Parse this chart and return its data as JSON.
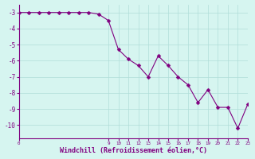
{
  "x": [
    0,
    1,
    2,
    3,
    4,
    5,
    6,
    7,
    8,
    9,
    10,
    11,
    12,
    13,
    14,
    15,
    16,
    17,
    18,
    19,
    20,
    21,
    22,
    23
  ],
  "y": [
    -3.0,
    -3.0,
    -3.0,
    -3.0,
    -3.0,
    -3.0,
    -3.0,
    -3.0,
    -3.1,
    -3.5,
    -5.3,
    -5.9,
    -6.3,
    -7.0,
    -5.7,
    -6.3,
    -7.0,
    -7.5,
    -8.6,
    -7.8,
    -8.9,
    -8.9,
    -10.2,
    -8.7
  ],
  "line_color": "#800080",
  "marker_color": "#800080",
  "background_color": "#d6f5f0",
  "grid_color": "#b0ddd8",
  "xlabel": "Windchill (Refroidissement éolien,°C)",
  "xlabel_color": "#800080",
  "ylim": [
    -10.8,
    -2.5
  ],
  "xlim": [
    0,
    23
  ],
  "yticks": [
    -3,
    -4,
    -5,
    -6,
    -7,
    -8,
    -9,
    -10
  ],
  "xticks": [
    0,
    9,
    10,
    11,
    12,
    13,
    14,
    15,
    16,
    17,
    18,
    19,
    20,
    21,
    22,
    23
  ],
  "xtick_labels": [
    "0",
    "9",
    "10",
    "11",
    "12",
    "13",
    "14",
    "15",
    "16",
    "17",
    "18",
    "19",
    "20",
    "21",
    "22",
    "23"
  ],
  "marker_size": 2.5,
  "line_width": 0.8
}
